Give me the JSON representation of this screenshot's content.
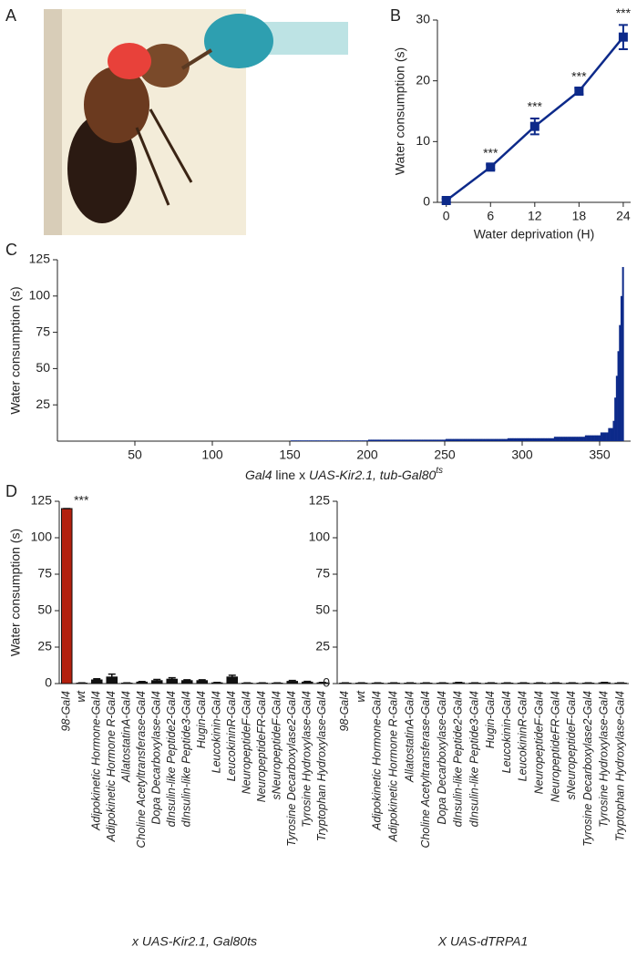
{
  "panel_labels": [
    "A",
    "B",
    "C",
    "D"
  ],
  "chart_data": [
    {
      "type": "line",
      "x_label": "Water deprivation (H)",
      "y_label": "Water consumption (s)",
      "x": [
        0,
        6,
        12,
        18,
        24
      ],
      "values": [
        0.3,
        5.8,
        12.5,
        18.3,
        27.2
      ],
      "errors": [
        0.3,
        0.4,
        1.3,
        0.5,
        2
      ],
      "point_labels": [
        null,
        "***",
        "***",
        "***",
        "***"
      ],
      "color": "#0d2a8a",
      "xlim": [
        -1.2,
        25
      ],
      "xticks": [
        0,
        6,
        12,
        18,
        24
      ],
      "ylim": [
        0,
        30
      ],
      "yticks": [
        0,
        10,
        20,
        30
      ]
    },
    {
      "type": "histbar",
      "x_label": [
        "Gal4",
        " line x ",
        "UAS-Kir2.1, tub-Gal80",
        "ts"
      ],
      "y_label": "Water consumption (s)",
      "color": "#0d2a8a",
      "xlim": [
        0,
        370
      ],
      "xticks": [
        50,
        100,
        150,
        200,
        250,
        300,
        350
      ],
      "ylim": [
        0,
        125
      ],
      "yticks": [
        25,
        50,
        75,
        100,
        125
      ],
      "values": [
        0,
        0,
        0,
        0,
        0,
        0,
        0,
        0,
        0,
        0,
        0,
        0,
        0,
        0,
        0,
        0,
        0,
        0,
        0,
        0,
        0,
        0,
        0,
        0,
        0,
        0,
        0,
        0,
        0,
        0,
        0,
        0,
        0,
        0,
        0,
        0,
        0,
        0,
        0,
        0,
        0,
        0,
        0,
        0,
        0,
        0,
        0,
        0,
        0,
        0,
        0,
        0,
        0,
        0,
        0,
        0,
        0,
        0,
        0,
        0,
        0,
        0,
        0,
        0,
        0,
        0,
        0,
        0,
        0,
        0,
        0,
        0,
        0,
        0,
        0,
        0,
        0,
        0,
        0,
        0,
        0,
        0,
        0,
        0,
        0,
        0,
        0,
        0,
        0,
        0,
        0,
        0,
        0,
        0,
        0,
        0,
        0,
        0,
        0,
        0,
        0,
        0,
        0,
        0,
        0,
        0,
        0,
        0,
        0,
        0,
        0,
        0,
        0,
        0,
        0,
        0,
        0,
        0,
        0,
        0,
        0,
        0,
        0,
        0,
        0,
        0,
        0,
        0,
        0,
        0,
        0,
        0,
        0,
        0,
        0,
        0,
        0,
        0,
        0,
        0,
        0,
        0,
        0,
        0,
        0,
        0,
        0,
        0,
        0,
        0,
        0.5,
        0.5,
        0.5,
        0.5,
        0.5,
        0.5,
        0.5,
        0.5,
        0.5,
        0.5,
        0.5,
        0.5,
        0.5,
        0.5,
        0.5,
        0.5,
        0.5,
        0.5,
        0.5,
        0.5,
        0.5,
        0.5,
        0.5,
        0.5,
        0.5,
        0.5,
        0.5,
        0.5,
        0.5,
        0.5,
        0.5,
        0.5,
        0.5,
        0.5,
        0.5,
        0.5,
        0.5,
        0.5,
        0.5,
        0.5,
        0.5,
        0.5,
        0.5,
        0.5,
        0.5,
        0.5,
        0.5,
        0.5,
        0.5,
        0.5,
        1,
        1,
        1,
        1,
        1,
        1,
        1,
        1,
        1,
        1,
        1,
        1,
        1,
        1,
        1,
        1,
        1,
        1,
        1,
        1,
        1,
        1,
        1,
        1,
        1,
        1,
        1,
        1,
        1,
        1,
        1,
        1,
        1,
        1,
        1,
        1,
        1,
        1,
        1,
        1,
        1,
        1,
        1,
        1,
        1,
        1,
        1,
        1,
        1,
        1,
        1.5,
        1.5,
        1.5,
        1.5,
        1.5,
        1.5,
        1.5,
        1.5,
        1.5,
        1.5,
        1.5,
        1.5,
        1.5,
        1.5,
        1.5,
        1.5,
        1.5,
        1.5,
        1.5,
        1.5,
        1.5,
        1.5,
        1.5,
        1.5,
        1.5,
        1.5,
        1.5,
        1.5,
        1.5,
        1.5,
        1.5,
        1.5,
        1.5,
        1.5,
        1.5,
        1.5,
        1.5,
        1.5,
        1.5,
        1.5,
        2,
        2,
        2,
        2,
        2,
        2,
        2,
        2,
        2,
        2,
        2,
        2,
        2,
        2,
        2,
        2,
        2,
        2,
        2,
        2,
        2,
        2,
        2,
        2,
        2,
        2,
        2,
        2,
        2,
        2,
        3,
        3,
        3,
        3,
        3,
        3,
        3,
        3,
        3,
        3,
        3,
        3,
        3,
        3,
        3,
        3,
        3,
        3,
        3,
        3,
        4,
        4,
        4,
        4,
        4,
        4,
        4,
        4,
        4,
        4,
        6,
        6,
        6,
        6,
        6,
        9,
        9,
        9,
        14,
        30,
        45,
        62,
        80,
        100,
        120
      ]
    },
    {
      "type": "bar",
      "y_label": "Water consumption (s)",
      "group_label": "x UAS-Kir2.1, Gal80ts",
      "categories": [
        "98-Gal4",
        "wt",
        "Adipokinetic Hormone-Gal4",
        "Adipokinetic Hormone R-Gal4",
        "AllatostatinA-Gal4",
        "Choline Acetyltransferase-Gal4",
        "Dopa Decarboxylase-Gal4",
        "dInsulin-like Peptide2-Gal4",
        "dInsulin-like Peptide3-Gal4",
        "Hugin-Gal4",
        "Leucokinin-Gal4",
        "LeucokininR-Gal4",
        "NeuropeptideF-Gal4",
        "NeuropeptideFR-Gal4",
        "sNeuropeptideF-Gal4",
        "Tyrosine Decarboxylase2-Gal4",
        "Tyrosine Hydroxylase-Gal4",
        "Tryptophan Hydroxylase-Gal4"
      ],
      "values": [
        120,
        0.3,
        2.5,
        4.5,
        0.3,
        1,
        2,
        3,
        2,
        2,
        0.5,
        4.5,
        0.3,
        0.3,
        0.3,
        1.5,
        1,
        0.5
      ],
      "errors": [
        0,
        0.2,
        0.8,
        2,
        0.2,
        0.4,
        0.8,
        1,
        0.6,
        0.6,
        0.3,
        1.2,
        0.2,
        0.2,
        0.2,
        0.6,
        0.5,
        0.3
      ],
      "point_labels": [
        "***",
        null,
        null,
        null,
        null,
        null,
        null,
        null,
        null,
        null,
        null,
        null,
        null,
        null,
        null,
        null,
        null,
        null
      ],
      "colors": [
        "#b3200e",
        "#111111",
        "#111111",
        "#111111",
        "#111111",
        "#111111",
        "#111111",
        "#111111",
        "#111111",
        "#111111",
        "#111111",
        "#111111",
        "#111111",
        "#111111",
        "#111111",
        "#111111",
        "#111111",
        "#111111"
      ],
      "ylim": [
        0,
        125
      ],
      "yticks": [
        0,
        25,
        50,
        75,
        100,
        125
      ]
    },
    {
      "type": "bar",
      "group_label": "X UAS-dTRPA1",
      "categories": [
        "98-Gal4",
        "wt",
        "Adipokinetic Hormone-Gal4",
        "Adipokinetic Hormone R-Gal4",
        "AllatostatinA-Gal4",
        "Choline Acetyltransferase-Gal4",
        "Dopa Decarboxylase-Gal4",
        "dInsulin-like Peptide2-Gal4",
        "dInsulin-like Peptide3-Gal4",
        "Hugin-Gal4",
        "Leucokinin-Gal4",
        "LeucokininR-Gal4",
        "NeuropeptideF-Gal4",
        "NeuropeptideFR-Gal4",
        "sNeuropeptideF-Gal4",
        "Tyrosine Decarboxylase2-Gal4",
        "Tyrosine Hydroxylase-Gal4",
        "Tryptophan Hydroxylase-Gal4"
      ],
      "values": [
        0.3,
        0.3,
        0.3,
        0.3,
        0.3,
        0.3,
        0.3,
        0.5,
        0.3,
        0.3,
        0.3,
        0.3,
        0.3,
        0.3,
        0.3,
        0.3,
        0.5,
        0.3
      ],
      "errors": [
        0.2,
        0.2,
        0.2,
        0.2,
        0.2,
        0.2,
        0.2,
        0.3,
        0.2,
        0.2,
        0.2,
        0.2,
        0.2,
        0.2,
        0.2,
        0.2,
        0.3,
        0.2
      ],
      "colors": [
        "#111111",
        "#111111",
        "#111111",
        "#111111",
        "#111111",
        "#111111",
        "#111111",
        "#111111",
        "#111111",
        "#111111",
        "#111111",
        "#111111",
        "#111111",
        "#111111",
        "#111111",
        "#111111",
        "#111111",
        "#111111"
      ],
      "ylim": [
        0,
        125
      ],
      "yticks": [
        0,
        25,
        50,
        75,
        100,
        125
      ]
    }
  ]
}
